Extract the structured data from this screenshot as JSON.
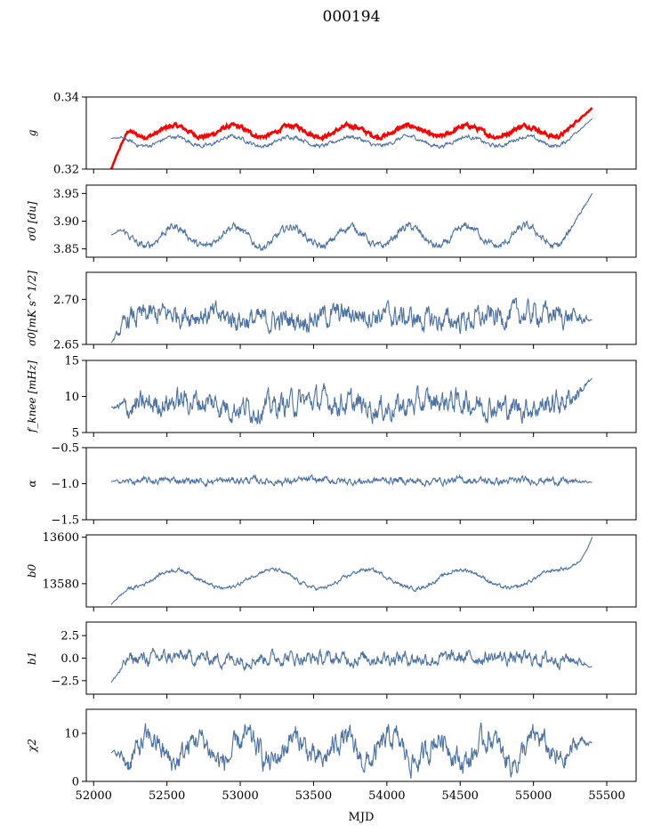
{
  "figure": {
    "title": "000194",
    "xlabel": "MJD"
  },
  "colors": {
    "series": "#4c72a4",
    "reference": "#ff0000",
    "axis": "#000000"
  },
  "chart_data": {
    "type": "line",
    "xlim": [
      51950,
      55700
    ],
    "xticks": [
      52000,
      52500,
      53000,
      53500,
      54000,
      54500,
      55000,
      55500
    ],
    "x_start": 52120,
    "x_end": 55400,
    "panels": [
      {
        "ylabel": "g",
        "ylim": [
          0.32,
          0.34
        ],
        "yticks": [
          0.32,
          0.34
        ],
        "ytick_labels": [
          "0.32",
          "0.34"
        ],
        "series": [
          {
            "color": "red",
            "base": 0.3305,
            "amp": 0.0015,
            "period": 400,
            "phase": 52450,
            "noise": 0.0004,
            "start": 0.32,
            "end": 0.337
          },
          {
            "color": "blue",
            "base": 0.3277,
            "amp": 0.0013,
            "period": 400,
            "phase": 52450,
            "noise": 0.0004,
            "start": 0.3285,
            "end": 0.334
          }
        ]
      },
      {
        "ylabel": "σ0 [du]",
        "ylim": [
          3.835,
          3.965
        ],
        "yticks": [
          3.85,
          3.9,
          3.95
        ],
        "ytick_labels": [
          "3.85",
          "3.90",
          "3.95"
        ],
        "series": [
          {
            "color": "blue",
            "base": 3.872,
            "amp": 0.018,
            "period": 400,
            "phase": 52450,
            "noise": 0.005,
            "start": 3.875,
            "end": 3.95
          }
        ]
      },
      {
        "ylabel": "σ0[mK s^1/2]",
        "ylim": [
          2.65,
          2.73
        ],
        "yticks": [
          2.65,
          2.7
        ],
        "ytick_labels": [
          "2.65",
          "2.70"
        ],
        "series": [
          {
            "color": "blue",
            "base": 2.68,
            "amp": 0.004,
            "period": 1200,
            "phase": 52300,
            "noise": 0.009,
            "start": 2.652,
            "end": 2.677
          }
        ]
      },
      {
        "ylabel": "f_knee [mHz]",
        "ylim": [
          5,
          15
        ],
        "yticks": [
          5,
          10,
          15
        ],
        "ytick_labels": [
          "5",
          "10",
          "15"
        ],
        "series": [
          {
            "color": "blue",
            "base": 8.9,
            "amp": 0.5,
            "period": 900,
            "phase": 52400,
            "noise": 1.2,
            "start": 8.5,
            "end": 12.5
          }
        ]
      },
      {
        "ylabel": "α",
        "ylim": [
          -1.5,
          -0.5
        ],
        "yticks": [
          -1.5,
          -1.0,
          -0.5
        ],
        "ytick_labels": [
          "−1.5",
          "−1.0",
          "−0.5"
        ],
        "series": [
          {
            "color": "blue",
            "base": -0.96,
            "amp": 0.01,
            "period": 500,
            "phase": 52400,
            "noise": 0.035,
            "start": -0.97,
            "end": -0.98
          }
        ]
      },
      {
        "ylabel": "b0",
        "ylim": [
          13570,
          13601
        ],
        "yticks": [
          13580,
          13600
        ],
        "ytick_labels": [
          "13580",
          "13600"
        ],
        "series": [
          {
            "color": "blue",
            "base": 13582,
            "amp": 4,
            "period": 650,
            "phase": 53050,
            "noise": 0.6,
            "start": 13571,
            "end": 13600
          }
        ]
      },
      {
        "ylabel": "b1",
        "ylim": [
          -4,
          4
        ],
        "yticks": [
          -2.5,
          0.0,
          2.5
        ],
        "ytick_labels": [
          "−2.5",
          "0.0",
          "2.5"
        ],
        "series": [
          {
            "color": "blue",
            "base": 0.0,
            "amp": 0.1,
            "period": 700,
            "phase": 52400,
            "noise": 0.55,
            "start": -2.7,
            "end": -1.0
          }
        ]
      },
      {
        "ylabel": "χ2",
        "ylim": [
          0,
          15
        ],
        "yticks": [
          0,
          10
        ],
        "ytick_labels": [
          "0",
          "10"
        ],
        "series": [
          {
            "color": "blue",
            "base": 6.5,
            "amp": 2.5,
            "period": 330,
            "phase": 52300,
            "noise": 1.8,
            "start": 6.0,
            "end": 8.0
          }
        ]
      }
    ]
  }
}
